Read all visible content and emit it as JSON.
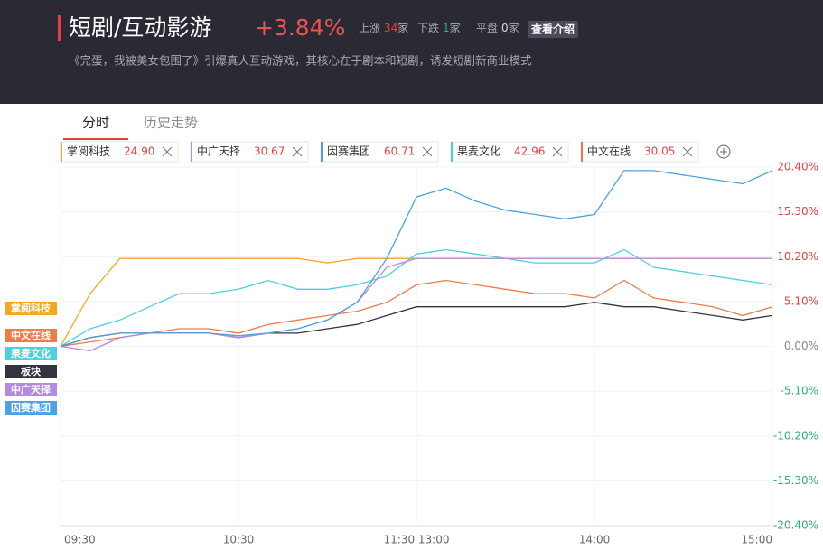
{
  "header": {
    "title": "短剧/互动影游",
    "change": "+3.84%",
    "stats": [
      {
        "label": "上涨",
        "count": 34,
        "unit": "家"
      },
      {
        "label": "下跌",
        "count": 1,
        "unit": "家"
      },
      {
        "label": "平盘",
        "count": 0,
        "unit": "家"
      }
    ],
    "button": "查看介绍",
    "description": "《完蛋，我被美女包围了》引爆真人互动游戏，其核心在于剧本和短剧，诱发短剧新商业模式"
  },
  "tabs": [
    "分时",
    "历史走势"
  ],
  "quotes": [
    {
      "name": "掌阅科技",
      "price": "24.90",
      "color": "#f5a623"
    },
    {
      "name": "中广天择",
      "price": "30.67",
      "color": "#b48be0"
    },
    {
      "name": "因赛集团",
      "price": "60.71",
      "color": "#4aa3e0"
    },
    {
      "name": "果麦文化",
      "price": "42.96",
      "color": "#4cd0e0"
    },
    {
      "name": "中文在线",
      "price": "30.05",
      "color": "#f07a4a"
    }
  ],
  "chart_data": {
    "type": "line",
    "x": [
      0,
      10,
      20,
      30,
      40,
      50,
      60,
      70,
      80,
      90,
      100,
      110,
      120,
      130,
      140,
      150,
      160,
      170,
      180,
      190,
      200,
      210,
      220,
      230,
      240
    ],
    "xlim": [
      0,
      240
    ],
    "xticks": [
      {
        "value": 0,
        "label": "09:30"
      },
      {
        "value": 60,
        "label": "10:30"
      },
      {
        "value": 120,
        "label": "11:30  13:00"
      },
      {
        "value": 180,
        "label": "14:00"
      },
      {
        "value": 240,
        "label": "15:00"
      }
    ],
    "ylim": [
      -20.4,
      20.4
    ],
    "yticks": [
      {
        "value": 20.4,
        "label": "20.40%"
      },
      {
        "value": 15.3,
        "label": "15.30%"
      },
      {
        "value": 10.2,
        "label": "10.20%"
      },
      {
        "value": 5.1,
        "label": "5.10%"
      },
      {
        "value": 0,
        "label": "0.00%"
      },
      {
        "value": -5.1,
        "label": "-5.10%"
      },
      {
        "value": -10.2,
        "label": "-10.20%"
      },
      {
        "value": -15.3,
        "label": "-15.30%"
      },
      {
        "value": -20.4,
        "label": "-20.40%"
      }
    ],
    "grid": true,
    "series": [
      {
        "name": "掌阅科技",
        "color": "#f5a623",
        "values": [
          0,
          6,
          10,
          10,
          10,
          10,
          10,
          10,
          10,
          9.5,
          10,
          10,
          10,
          10,
          10,
          10,
          10,
          10,
          10,
          10,
          10,
          10,
          10,
          10,
          10
        ]
      },
      {
        "name": "中文在线",
        "color": "#f07a4a",
        "values": [
          0,
          0.5,
          1,
          1.5,
          2,
          2,
          1.5,
          2.5,
          3,
          3.5,
          4,
          5,
          7,
          7.5,
          7,
          6.5,
          6,
          6,
          5.5,
          7.5,
          5.5,
          5,
          4.5,
          3.5,
          4.5
        ]
      },
      {
        "name": "果麦文化",
        "color": "#4cd0e0",
        "values": [
          0,
          2,
          3,
          4.5,
          6,
          6,
          6.5,
          7.5,
          6.5,
          6.5,
          7,
          8,
          10.5,
          11,
          10.5,
          10,
          9.5,
          9.5,
          9.5,
          11,
          9,
          8.5,
          8,
          7.5,
          7
        ]
      },
      {
        "name": "板块",
        "color": "#333344",
        "values": [
          0,
          1,
          1.5,
          1.5,
          1.5,
          1.5,
          1,
          1.5,
          1.5,
          2,
          2.5,
          3.5,
          4.5,
          4.5,
          4.5,
          4.5,
          4.5,
          4.5,
          5,
          4.5,
          4.5,
          4,
          3.5,
          3,
          3.5
        ]
      },
      {
        "name": "中广天择",
        "color": "#b48be0",
        "values": [
          0,
          -0.5,
          1,
          1.5,
          1.5,
          1.5,
          1,
          1.5,
          2,
          3,
          5,
          9,
          10,
          10,
          10,
          10,
          10,
          10,
          10,
          10,
          10,
          10,
          10,
          10,
          10
        ]
      },
      {
        "name": "因赛集团",
        "color": "#4aa3e0",
        "values": [
          0,
          1,
          1.5,
          1.5,
          1.5,
          1.5,
          1.2,
          1.5,
          2,
          3,
          5,
          10,
          17,
          18,
          16.5,
          15.5,
          15,
          14.5,
          15,
          20,
          20,
          19.5,
          19,
          18.5,
          20
        ]
      }
    ]
  }
}
